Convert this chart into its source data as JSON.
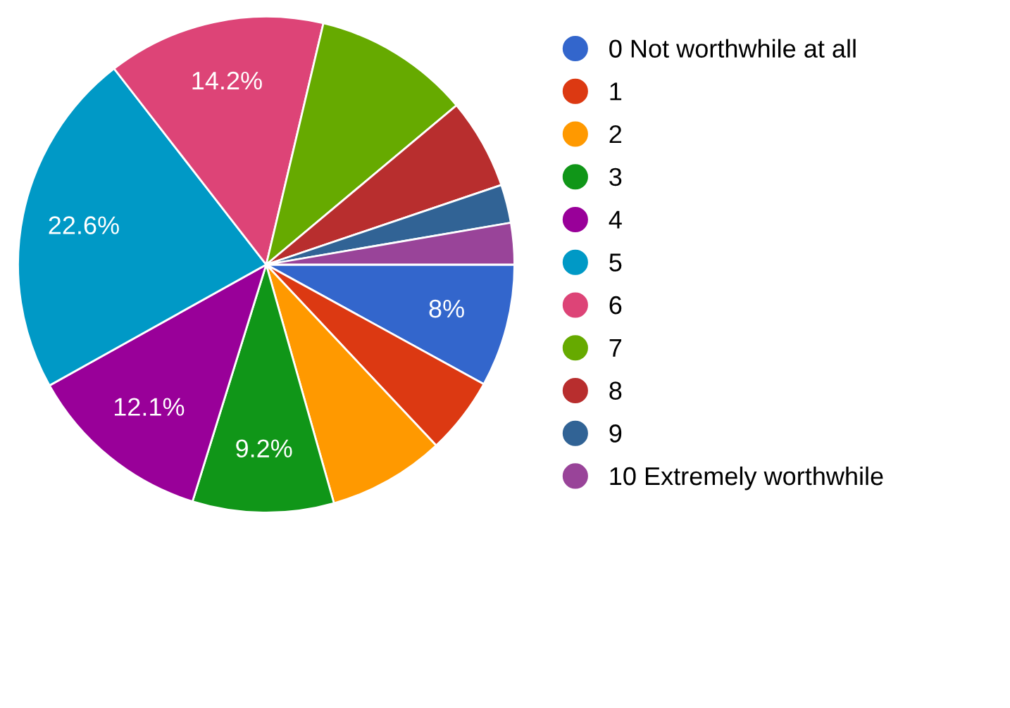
{
  "chart_data": {
    "type": "pie",
    "categories": [
      "0 Not worthwhile at all",
      "1",
      "2",
      "3",
      "4",
      "5",
      "6",
      "7",
      "8",
      "9",
      "10 Extremely worthwhile"
    ],
    "values": [
      8,
      5,
      7.6,
      9.2,
      12.1,
      22.6,
      14.2,
      10.2,
      5.9,
      2.5,
      2.7
    ],
    "value_labels": [
      "8%",
      null,
      null,
      "9.2%",
      "12.1%",
      "22.6%",
      "14.2%",
      null,
      null,
      null,
      null
    ],
    "colors": [
      "#3366cc",
      "#dc3912",
      "#ff9900",
      "#109618",
      "#990099",
      "#0099c6",
      "#dd4477",
      "#66aa00",
      "#b82e2e",
      "#316395",
      "#994499"
    ],
    "legend": "right"
  }
}
